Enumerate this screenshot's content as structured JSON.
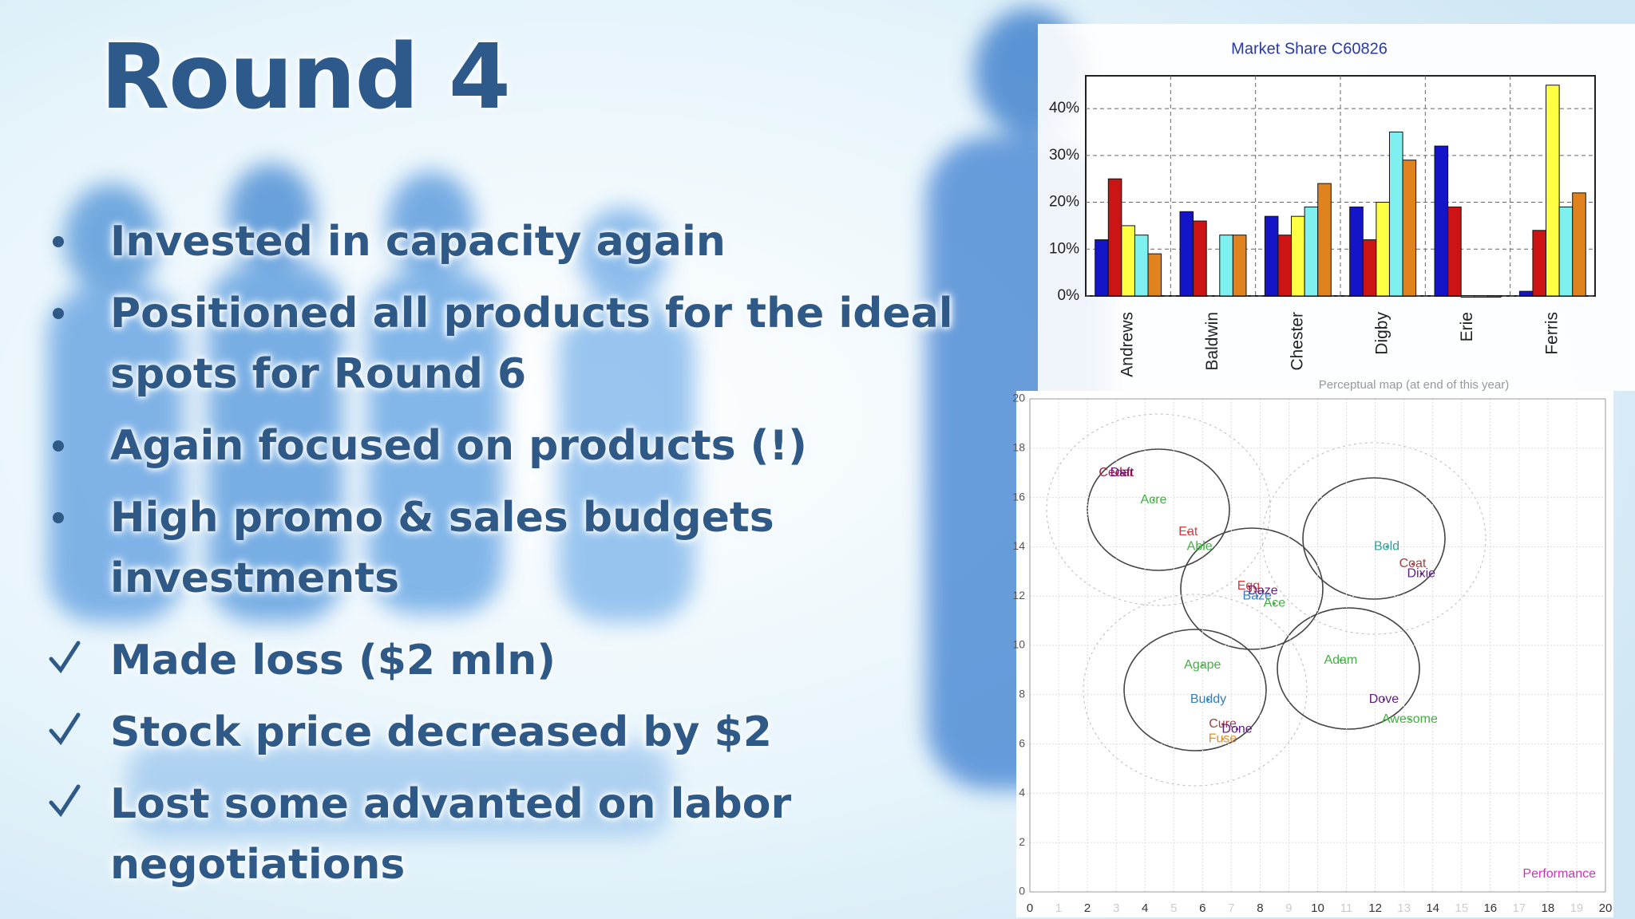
{
  "title": "Round 4",
  "bullets": [
    "Invested in capacity again",
    "Positioned all products for the ideal spots for Round 6",
    "Again focused on products (!)",
    "High promo & sales budgets investments"
  ],
  "checks": [
    "Made loss ($2 mln)",
    "Stock price decreased by $2",
    "Lost some advanted on labor negotiations"
  ],
  "chart_data": [
    {
      "type": "bar",
      "title": "Market Share  C60826",
      "categories": [
        "Andrews",
        "Baldwin",
        "Chester",
        "Digby",
        "Erie",
        "Ferris"
      ],
      "series": [
        {
          "color": "#1414c8",
          "values": [
            12,
            18,
            17,
            19,
            32,
            1
          ]
        },
        {
          "color": "#cc1414",
          "values": [
            25,
            16,
            13,
            12,
            19,
            14
          ]
        },
        {
          "color": "#ffff44",
          "values": [
            15,
            null,
            17,
            20,
            0,
            45
          ]
        },
        {
          "color": "#7ff0f0",
          "values": [
            13,
            13,
            19,
            35,
            0,
            19
          ]
        },
        {
          "color": "#e0821e",
          "values": [
            9,
            13,
            24,
            29,
            0,
            22
          ]
        }
      ],
      "ylim": [
        0,
        47
      ],
      "yticks": [
        {
          "value": 0,
          "label": "0%"
        },
        {
          "value": 10,
          "label": "10%"
        },
        {
          "value": 20,
          "label": "20%"
        },
        {
          "value": 30,
          "label": "30%"
        },
        {
          "value": 40,
          "label": "40%"
        }
      ],
      "grid": true
    },
    {
      "type": "scatter",
      "title": "Perceptual map (at end of this year)",
      "x_label": "Performance",
      "points": [
        {
          "label": "Cedar",
          "x": 3.0,
          "y": 17.0,
          "color": "#a02040"
        },
        {
          "label": "Daft",
          "x": 3.2,
          "y": 17.0,
          "color": "#6a1070"
        },
        {
          "label": "Acre",
          "x": 4.3,
          "y": 15.9,
          "color": "#40b040"
        },
        {
          "label": "Eat",
          "x": 5.5,
          "y": 14.6,
          "color": "#d04040"
        },
        {
          "label": "Able",
          "x": 5.9,
          "y": 14.0,
          "color": "#40b040"
        },
        {
          "label": "Bold",
          "x": 12.4,
          "y": 14.0,
          "color": "#30a0a0"
        },
        {
          "label": "Coat",
          "x": 13.3,
          "y": 13.3,
          "color": "#a04040"
        },
        {
          "label": "Dixie",
          "x": 13.6,
          "y": 12.9,
          "color": "#602080"
        },
        {
          "label": "Egg",
          "x": 7.6,
          "y": 12.4,
          "color": "#d04040"
        },
        {
          "label": "Daze",
          "x": 8.1,
          "y": 12.2,
          "color": "#602080"
        },
        {
          "label": "Baze",
          "x": 7.9,
          "y": 12.0,
          "color": "#3080c0"
        },
        {
          "label": "Ace",
          "x": 8.5,
          "y": 11.7,
          "color": "#40b040"
        },
        {
          "label": "Adam",
          "x": 10.8,
          "y": 9.4,
          "color": "#40b040"
        },
        {
          "label": "Agape",
          "x": 6.0,
          "y": 9.2,
          "color": "#40b040"
        },
        {
          "label": "Buddy",
          "x": 6.2,
          "y": 7.8,
          "color": "#3080c0"
        },
        {
          "label": "Dove",
          "x": 12.3,
          "y": 7.8,
          "color": "#602080"
        },
        {
          "label": "Awesome",
          "x": 13.2,
          "y": 7.0,
          "color": "#40b040"
        },
        {
          "label": "Cure",
          "x": 6.7,
          "y": 6.8,
          "color": "#a04040"
        },
        {
          "label": "Done",
          "x": 7.2,
          "y": 6.6,
          "color": "#602080"
        },
        {
          "label": "Fuse",
          "x": 6.7,
          "y": 6.2,
          "color": "#e09020"
        }
      ],
      "xlim": [
        0,
        20
      ],
      "ylim": [
        0,
        20
      ],
      "xticks": [
        0,
        1,
        2,
        3,
        4,
        5,
        6,
        7,
        8,
        9,
        10,
        11,
        12,
        13,
        14,
        15,
        16,
        17,
        18,
        19,
        20
      ],
      "yticks": [
        0,
        2,
        4,
        6,
        8,
        10,
        12,
        14,
        16,
        18,
        20
      ],
      "grid": true
    }
  ]
}
